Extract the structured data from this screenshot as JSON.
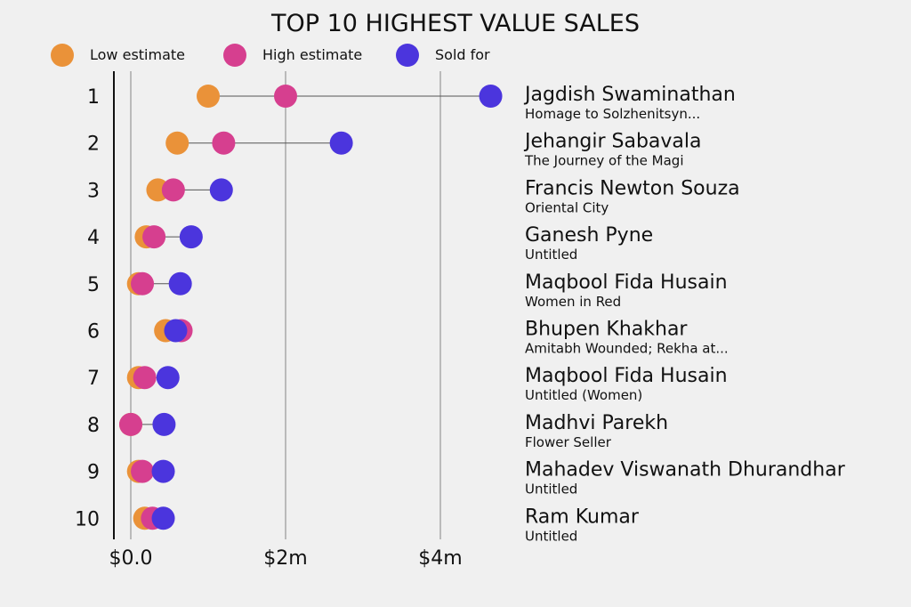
{
  "chart_data": {
    "type": "dot-plot",
    "title": "TOP 10 HIGHEST VALUE SALES",
    "x_ticks": [
      {
        "value": 0,
        "label": "$0.0"
      },
      {
        "value": 2000000,
        "label": "$2m"
      },
      {
        "value": 4000000,
        "label": "$4m"
      }
    ],
    "xlim": [
      -200000,
      5000000
    ],
    "grid": "vertical",
    "legend_position": "top",
    "series": [
      {
        "key": "low",
        "name": "Low estimate",
        "color": "#ea9239"
      },
      {
        "key": "high",
        "name": "High estimate",
        "color": "#d63f8f"
      },
      {
        "key": "sold",
        "name": "Sold for",
        "color": "#4b35dd"
      }
    ],
    "rows": [
      {
        "rank": "1",
        "artist": "Jagdish Swaminathan",
        "work": "Homage to Solzhenitsyn...",
        "low": 1000000,
        "high": 2000000,
        "sold": 4650000
      },
      {
        "rank": "2",
        "artist": "Jehangir Sabavala",
        "work": "The Journey of the Magi",
        "low": 600000,
        "high": 1200000,
        "sold": 2720000
      },
      {
        "rank": "3",
        "artist": "Francis Newton Souza",
        "work": "Oriental City",
        "low": 350000,
        "high": 550000,
        "sold": 1170000
      },
      {
        "rank": "4",
        "artist": "Ganesh Pyne",
        "work": "Untitled",
        "low": 200000,
        "high": 300000,
        "sold": 780000
      },
      {
        "rank": "5",
        "artist": "Maqbool Fida Husain",
        "work": "Women in Red",
        "low": 100000,
        "high": 150000,
        "sold": 640000
      },
      {
        "rank": "6",
        "artist": "Bhupen Khakhar",
        "work": "Amitabh Wounded; Rekha at...",
        "low": 450000,
        "high": 650000,
        "sold": 580000
      },
      {
        "rank": "7",
        "artist": "Maqbool Fida Husain",
        "work": "Untitled (Women)",
        "low": 100000,
        "high": 180000,
        "sold": 480000
      },
      {
        "rank": "8",
        "artist": "Madhvi Parekh",
        "work": "Flower Seller",
        "low": 0,
        "high": 0,
        "sold": 430000
      },
      {
        "rank": "9",
        "artist": "Mahadev Viswanath Dhurandhar",
        "work": "Untitled",
        "low": 100000,
        "high": 150000,
        "sold": 420000
      },
      {
        "rank": "10",
        "artist": "Ram Kumar",
        "work": "Untitled",
        "low": 180000,
        "high": 280000,
        "sold": 420000
      }
    ]
  }
}
